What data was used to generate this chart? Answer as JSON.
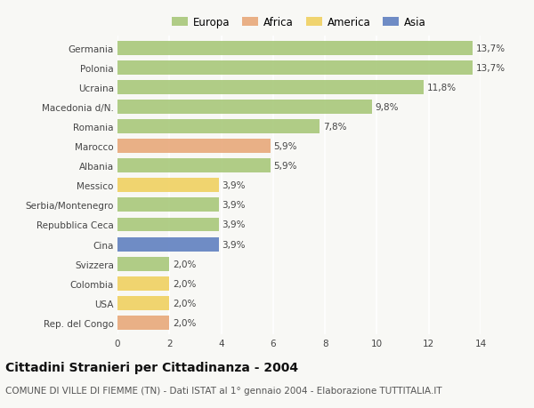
{
  "title": "Cittadini Stranieri per Cittadinanza - 2004",
  "subtitle": "COMUNE DI VILLE DI FIEMME (TN) - Dati ISTAT al 1° gennaio 2004 - Elaborazione TUTTITALIA.IT",
  "categories": [
    "Germania",
    "Polonia",
    "Ucraina",
    "Macedonia d/N.",
    "Romania",
    "Marocco",
    "Albania",
    "Messico",
    "Serbia/Montenegro",
    "Repubblica Ceca",
    "Cina",
    "Svizzera",
    "Colombia",
    "USA",
    "Rep. del Congo"
  ],
  "values": [
    13.7,
    13.7,
    11.8,
    9.8,
    7.8,
    5.9,
    5.9,
    3.9,
    3.9,
    3.9,
    3.9,
    2.0,
    2.0,
    2.0,
    2.0
  ],
  "labels": [
    "13,7%",
    "13,7%",
    "11,8%",
    "9,8%",
    "7,8%",
    "5,9%",
    "5,9%",
    "3,9%",
    "3,9%",
    "3,9%",
    "3,9%",
    "2,0%",
    "2,0%",
    "2,0%",
    "2,0%"
  ],
  "continent": [
    "Europa",
    "Europa",
    "Europa",
    "Europa",
    "Europa",
    "Africa",
    "Europa",
    "America",
    "Europa",
    "Europa",
    "Asia",
    "Europa",
    "America",
    "America",
    "Africa"
  ],
  "colors": {
    "Europa": "#a8c87a",
    "Africa": "#e8a87a",
    "America": "#f0d060",
    "Asia": "#6080c0"
  },
  "legend_order": [
    "Europa",
    "Africa",
    "America",
    "Asia"
  ],
  "legend_colors": [
    "#a8c87a",
    "#e8a87a",
    "#f0d060",
    "#6080c0"
  ],
  "xlim": [
    0,
    14
  ],
  "xticks": [
    0,
    2,
    4,
    6,
    8,
    10,
    12,
    14
  ],
  "background_color": "#f8f8f5",
  "grid_color": "#ffffff",
  "bar_height": 0.72,
  "title_fontsize": 10,
  "subtitle_fontsize": 7.5,
  "label_fontsize": 7.5,
  "tick_fontsize": 7.5,
  "legend_fontsize": 8.5
}
